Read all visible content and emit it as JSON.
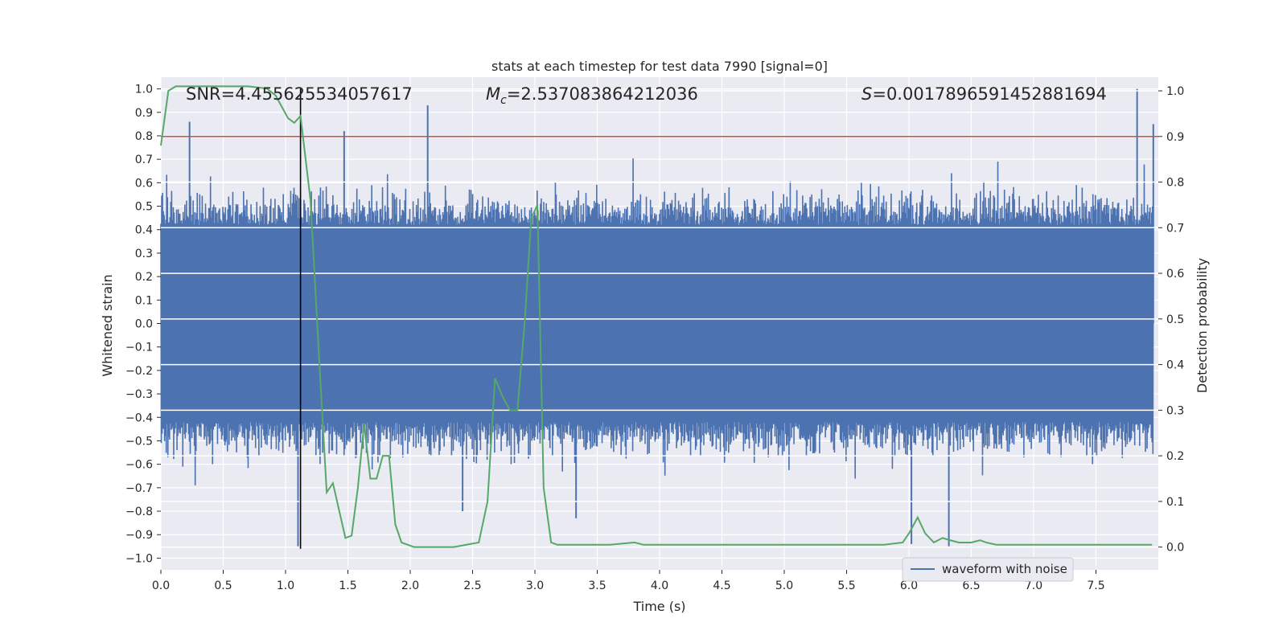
{
  "chart_data": {
    "type": "line",
    "title": "stats at each timestep for test data 7990 [signal=0]",
    "xlabel": "Time (s)",
    "ylabel": "Whitened strain",
    "ylabel_right": "Detection probability",
    "xlim": [
      0.0,
      8.0
    ],
    "ylim": [
      -1.05,
      1.05
    ],
    "ylim_right": [
      -0.05,
      1.03
    ],
    "x_ticks": [
      "0.0",
      "0.5",
      "1.0",
      "1.5",
      "2.0",
      "2.5",
      "3.0",
      "3.5",
      "4.0",
      "4.5",
      "5.0",
      "5.5",
      "6.0",
      "6.5",
      "7.0",
      "7.5"
    ],
    "y_ticks": [
      "1.0",
      "0.9",
      "0.8",
      "0.7",
      "0.6",
      "0.5",
      "0.4",
      "0.3",
      "0.2",
      "0.1",
      "0.0",
      "-0.1",
      "-0.2",
      "-0.3",
      "-0.4",
      "-0.5",
      "-0.6",
      "-0.7",
      "-0.8",
      "-0.9",
      "-1.0"
    ],
    "y_tick_values": [
      1.0,
      0.9,
      0.8,
      0.7,
      0.6,
      0.5,
      0.4,
      0.3,
      0.2,
      0.1,
      0.0,
      -0.1,
      -0.2,
      -0.3,
      -0.4,
      -0.5,
      -0.6,
      -0.7,
      -0.8,
      -0.9,
      -1.0
    ],
    "y_right_ticks": [
      "1.0",
      "0.9",
      "0.8",
      "0.7",
      "0.6",
      "0.5",
      "0.4",
      "0.3",
      "0.2",
      "0.1",
      "0.0"
    ],
    "y_right_tick_values": [
      1.0,
      0.9,
      0.8,
      0.7,
      0.6,
      0.5,
      0.4,
      0.3,
      0.2,
      0.1,
      0.0
    ],
    "grid": true,
    "legend": {
      "position": "bottom-right",
      "entries": [
        {
          "label": "waveform with noise",
          "color": "#4c72b0"
        }
      ]
    },
    "annotations": {
      "snr": "SNR=4.455625534057617",
      "mc_symbol": "M",
      "mc_sub": "c",
      "mc_value": "=2.537083864212036",
      "s_symbol": "S",
      "s_value": "=0.0017896591452881694"
    },
    "threshold_right": 0.9,
    "vertical_marker_x": 1.12,
    "colors": {
      "waveform": "#4c72b0",
      "probability": "#55a868",
      "threshold": "#c44e52",
      "marker": "#000000",
      "plot_bg": "#eaeaf2",
      "grid": "#ffffff"
    },
    "series": [
      {
        "name": "waveform with noise",
        "axis": "left",
        "description_points": [
          {
            "x": 0.23,
            "y": 0.86
          },
          {
            "x": 1.1,
            "y": -0.95
          },
          {
            "x": 1.47,
            "y": 0.82
          },
          {
            "x": 2.14,
            "y": 0.93
          },
          {
            "x": 2.42,
            "y": -0.8
          },
          {
            "x": 3.33,
            "y": -0.83
          },
          {
            "x": 6.02,
            "y": -0.94
          },
          {
            "x": 6.32,
            "y": -0.95
          },
          {
            "x": 7.83,
            "y": 1.0
          },
          {
            "x": 7.96,
            "y": 0.85
          }
        ]
      },
      {
        "name": "",
        "axis": "right",
        "x": [
          0.0,
          0.06,
          0.12,
          0.2,
          0.3,
          0.5,
          0.7,
          0.85,
          0.92,
          0.97,
          1.02,
          1.07,
          1.12,
          1.2,
          1.27,
          1.33,
          1.38,
          1.43,
          1.48,
          1.53,
          1.58,
          1.63,
          1.68,
          1.73,
          1.78,
          1.83,
          1.88,
          1.93,
          1.98,
          2.03,
          2.08,
          2.15,
          2.25,
          2.35,
          2.45,
          2.55,
          2.62,
          2.68,
          2.74,
          2.8,
          2.86,
          2.92,
          2.97,
          3.02,
          3.07,
          3.13,
          3.18,
          3.25,
          3.4,
          3.6,
          3.8,
          3.87,
          3.95,
          4.1,
          4.3,
          4.6,
          4.8,
          5.0,
          5.2,
          5.4,
          5.6,
          5.8,
          5.95,
          6.0,
          6.07,
          6.13,
          6.2,
          6.27,
          6.33,
          6.4,
          6.5,
          6.57,
          6.62,
          6.7,
          6.8,
          7.0,
          7.2,
          7.4,
          7.6,
          7.8,
          7.95
        ],
        "y": [
          0.88,
          1.0,
          1.01,
          1.01,
          1.01,
          1.01,
          1.01,
          1.005,
          0.99,
          0.965,
          0.94,
          0.93,
          0.945,
          0.76,
          0.41,
          0.12,
          0.14,
          0.08,
          0.02,
          0.025,
          0.13,
          0.27,
          0.15,
          0.15,
          0.2,
          0.2,
          0.05,
          0.01,
          0.005,
          0.0,
          0.0,
          0.0,
          0.0,
          0.0,
          0.005,
          0.01,
          0.1,
          0.37,
          0.33,
          0.3,
          0.3,
          0.5,
          0.72,
          0.75,
          0.13,
          0.01,
          0.005,
          0.005,
          0.005,
          0.005,
          0.01,
          0.005,
          0.005,
          0.005,
          0.005,
          0.005,
          0.005,
          0.005,
          0.005,
          0.005,
          0.005,
          0.005,
          0.01,
          0.03,
          0.065,
          0.03,
          0.01,
          0.02,
          0.015,
          0.01,
          0.01,
          0.015,
          0.01,
          0.005,
          0.005,
          0.005,
          0.005,
          0.005,
          0.005,
          0.005,
          0.005
        ]
      }
    ]
  }
}
